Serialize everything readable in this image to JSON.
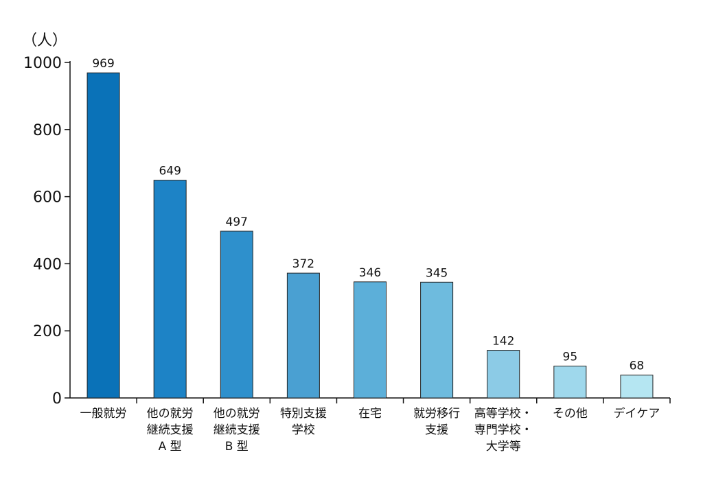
{
  "chart_data": {
    "type": "bar",
    "y_unit": "（人）",
    "ylim": [
      0,
      1000
    ],
    "y_ticks": [
      0,
      200,
      400,
      600,
      800,
      1000
    ],
    "grid": false,
    "categories": [
      [
        "一般就労"
      ],
      [
        "他の就労",
        "継続支援",
        "A 型"
      ],
      [
        "他の就労",
        "継続支援",
        "B 型"
      ],
      [
        "特別支援",
        "学校"
      ],
      [
        "在宅"
      ],
      [
        "就労移行",
        "支援"
      ],
      [
        "高等学校・",
        "専門学校・",
        "大学等"
      ],
      [
        "その他"
      ],
      [
        "デイケア"
      ]
    ],
    "values": [
      969,
      649,
      497,
      372,
      346,
      345,
      142,
      95,
      68
    ],
    "colors": [
      "#0a72b8",
      "#1d83c6",
      "#2e90cc",
      "#4aa0d2",
      "#5cafd9",
      "#6ebbde",
      "#8ccbe6",
      "#9fd8ec",
      "#b5e6f2"
    ]
  }
}
